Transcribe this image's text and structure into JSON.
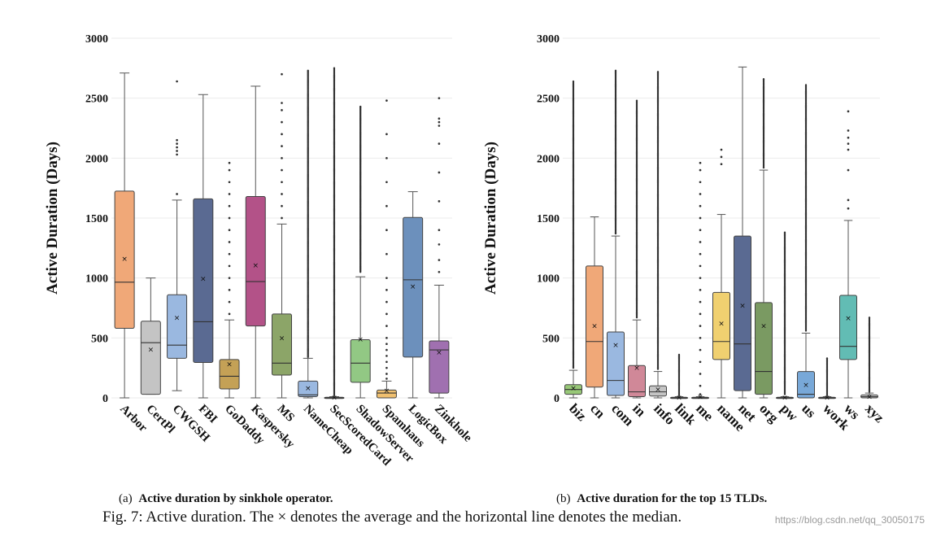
{
  "chart_data": [
    {
      "type": "box",
      "title": "Active duration by sinkhole operator.",
      "caption_label": "(a)",
      "ylabel": "Active Duration (Days)",
      "ylim": [
        0,
        3000
      ],
      "yticks": [
        0,
        500,
        1000,
        1500,
        2000,
        2500,
        3000
      ],
      "grid": true,
      "categories": [
        "Arbor",
        "CertPl",
        "CWGSH",
        "FBI",
        "GoDaddy",
        "Kaspersky",
        "MS",
        "NameCheap",
        "SecScoredCard",
        "ShadowServer",
        "Spamhaus",
        "LogicBox",
        "Zinkhole"
      ],
      "colors": [
        "#f0a878",
        "#c4c4c4",
        "#9ab8e0",
        "#5a6a92",
        "#c4a156",
        "#b35288",
        "#8ca568",
        "#9ab8e0",
        "#b8b8b8",
        "#92c884",
        "#f0c070",
        "#6c90bc",
        "#a070b0"
      ],
      "boxes": [
        {
          "min": 0,
          "q1": 580,
          "median": 965,
          "q3": 1725,
          "max": 2710,
          "mean": 1160,
          "outliers": []
        },
        {
          "min": 30,
          "q1": 30,
          "median": 460,
          "q3": 640,
          "max": 1000,
          "mean": 405,
          "outliers": []
        },
        {
          "min": 60,
          "q1": 330,
          "median": 440,
          "q3": 860,
          "max": 1650,
          "mean": 670,
          "outliers": [
            1700,
            2030,
            2060,
            2090,
            2120,
            2150,
            2640
          ]
        },
        {
          "min": 0,
          "q1": 295,
          "median": 635,
          "q3": 1660,
          "max": 2530,
          "mean": 995,
          "outliers": []
        },
        {
          "min": 0,
          "q1": 75,
          "median": 180,
          "q3": 320,
          "max": 650,
          "mean": 280,
          "outliers": [
            700,
            800,
            900,
            1000,
            1100,
            1200,
            1300,
            1400,
            1500,
            1600,
            1700,
            1800,
            1900,
            1960
          ]
        },
        {
          "min": 0,
          "q1": 600,
          "median": 970,
          "q3": 1680,
          "max": 2600,
          "mean": 1105,
          "outliers": []
        },
        {
          "min": 0,
          "q1": 190,
          "median": 290,
          "q3": 700,
          "max": 1450,
          "mean": 500,
          "outliers": [
            1500,
            1600,
            1700,
            1800,
            1900,
            2000,
            2100,
            2200,
            2300,
            2400,
            2460,
            2700
          ]
        },
        {
          "min": 0,
          "q1": 10,
          "median": 25,
          "q3": 140,
          "max": 330,
          "mean": 80,
          "outliers_range": [
            340,
            2730
          ]
        },
        {
          "min": 0,
          "q1": 0,
          "median": 0,
          "q3": 5,
          "max": 10,
          "mean": 5,
          "outliers_range": [
            20,
            2750
          ]
        },
        {
          "min": 0,
          "q1": 130,
          "median": 290,
          "q3": 485,
          "max": 1010,
          "mean": 490,
          "outliers_range": [
            1050,
            2430
          ]
        },
        {
          "min": 0,
          "q1": 0,
          "median": 40,
          "q3": 65,
          "max": 140,
          "mean": 60,
          "outliers": [
            160,
            200,
            250,
            300,
            350,
            400,
            450,
            500,
            600,
            700,
            800,
            900,
            1000,
            1200,
            1400,
            1600,
            1800,
            2000,
            2200,
            2480
          ]
        },
        {
          "min": 0,
          "q1": 340,
          "median": 985,
          "q3": 1505,
          "max": 1720,
          "mean": 930,
          "outliers": []
        },
        {
          "min": 0,
          "q1": 40,
          "median": 400,
          "q3": 475,
          "max": 940,
          "mean": 380,
          "outliers": [
            1050,
            1150,
            1280,
            1400,
            1640,
            1880,
            2120,
            2270,
            2300,
            2330,
            2500
          ]
        }
      ]
    },
    {
      "type": "box",
      "title": "Active duration for the top 15 TLDs.",
      "caption_label": "(b)",
      "ylabel": "Active Duration (Days)",
      "ylim": [
        0,
        3000
      ],
      "yticks": [
        0,
        500,
        1000,
        1500,
        2000,
        2500,
        3000
      ],
      "grid": true,
      "categories": [
        "biz",
        "cn",
        "com",
        "in",
        "info",
        "link",
        "me",
        "name",
        "net",
        "org",
        "pw",
        "us",
        "work",
        "ws",
        "xyz"
      ],
      "colors": [
        "#98c878",
        "#f0a878",
        "#9ab8e0",
        "#d08898",
        "#c4c4c4",
        "#bbbbbb",
        "#c8c8c8",
        "#f0d070",
        "#5a6a92",
        "#7a9a62",
        "#c8c8c8",
        "#78a8d8",
        "#c8c8c8",
        "#62bcb4",
        "#c8c8c8"
      ],
      "boxes": [
        {
          "min": 0,
          "q1": 30,
          "median": 70,
          "q3": 110,
          "max": 230,
          "mean": 80,
          "outliers_range": [
            250,
            2640
          ]
        },
        {
          "min": 0,
          "q1": 90,
          "median": 470,
          "q3": 1100,
          "max": 1510,
          "mean": 600,
          "outliers": []
        },
        {
          "min": 0,
          "q1": 20,
          "median": 145,
          "q3": 550,
          "max": 1350,
          "mean": 440,
          "outliers_range": [
            1370,
            2730
          ]
        },
        {
          "min": 0,
          "q1": 10,
          "median": 50,
          "q3": 270,
          "max": 650,
          "mean": 250,
          "outliers_range": [
            670,
            2480
          ]
        },
        {
          "min": 0,
          "q1": 15,
          "median": 50,
          "q3": 100,
          "max": 220,
          "mean": 70,
          "outliers_range": [
            240,
            2720
          ]
        },
        {
          "min": 0,
          "q1": 0,
          "median": 0,
          "q3": 5,
          "max": 10,
          "mean": 5,
          "outliers_range": [
            20,
            360
          ]
        },
        {
          "min": 0,
          "q1": 0,
          "median": 0,
          "q3": 5,
          "max": 10,
          "mean": 10,
          "outliers": [
            30,
            100,
            200,
            300,
            400,
            500,
            600,
            700,
            800,
            900,
            1000,
            1100,
            1200,
            1300,
            1400,
            1500,
            1600,
            1700,
            1800,
            1900,
            1960
          ]
        },
        {
          "min": 0,
          "q1": 320,
          "median": 470,
          "q3": 880,
          "max": 1530,
          "mean": 620,
          "outliers": [
            1950,
            2010,
            2070
          ]
        },
        {
          "min": 0,
          "q1": 60,
          "median": 450,
          "q3": 1350,
          "max": 2760,
          "mean": 770,
          "outliers": []
        },
        {
          "min": 0,
          "q1": 30,
          "median": 220,
          "q3": 795,
          "max": 1900,
          "mean": 600,
          "outliers_range": [
            1920,
            2660
          ]
        },
        {
          "min": 0,
          "q1": 0,
          "median": 0,
          "q3": 5,
          "max": 10,
          "mean": 5,
          "outliers_range": [
            30,
            1380
          ]
        },
        {
          "min": 0,
          "q1": 0,
          "median": 30,
          "q3": 220,
          "max": 540,
          "mean": 110,
          "outliers_range": [
            560,
            2610
          ]
        },
        {
          "min": 0,
          "q1": 0,
          "median": 0,
          "q3": 5,
          "max": 10,
          "mean": 5,
          "outliers_range": [
            20,
            330
          ]
        },
        {
          "min": 0,
          "q1": 320,
          "median": 430,
          "q3": 855,
          "max": 1480,
          "mean": 665,
          "outliers": [
            1580,
            1650,
            1900,
            2070,
            2120,
            2170,
            2230,
            2390
          ]
        },
        {
          "min": 0,
          "q1": 0,
          "median": 10,
          "q3": 25,
          "max": 40,
          "mean": 10,
          "outliers_range": [
            50,
            670
          ]
        }
      ]
    }
  ],
  "figure_caption": "Fig. 7: Active duration. The × denotes the average and the horizontal line denotes the median.",
  "watermark": "https://blog.csdn.net/qq_30050175"
}
